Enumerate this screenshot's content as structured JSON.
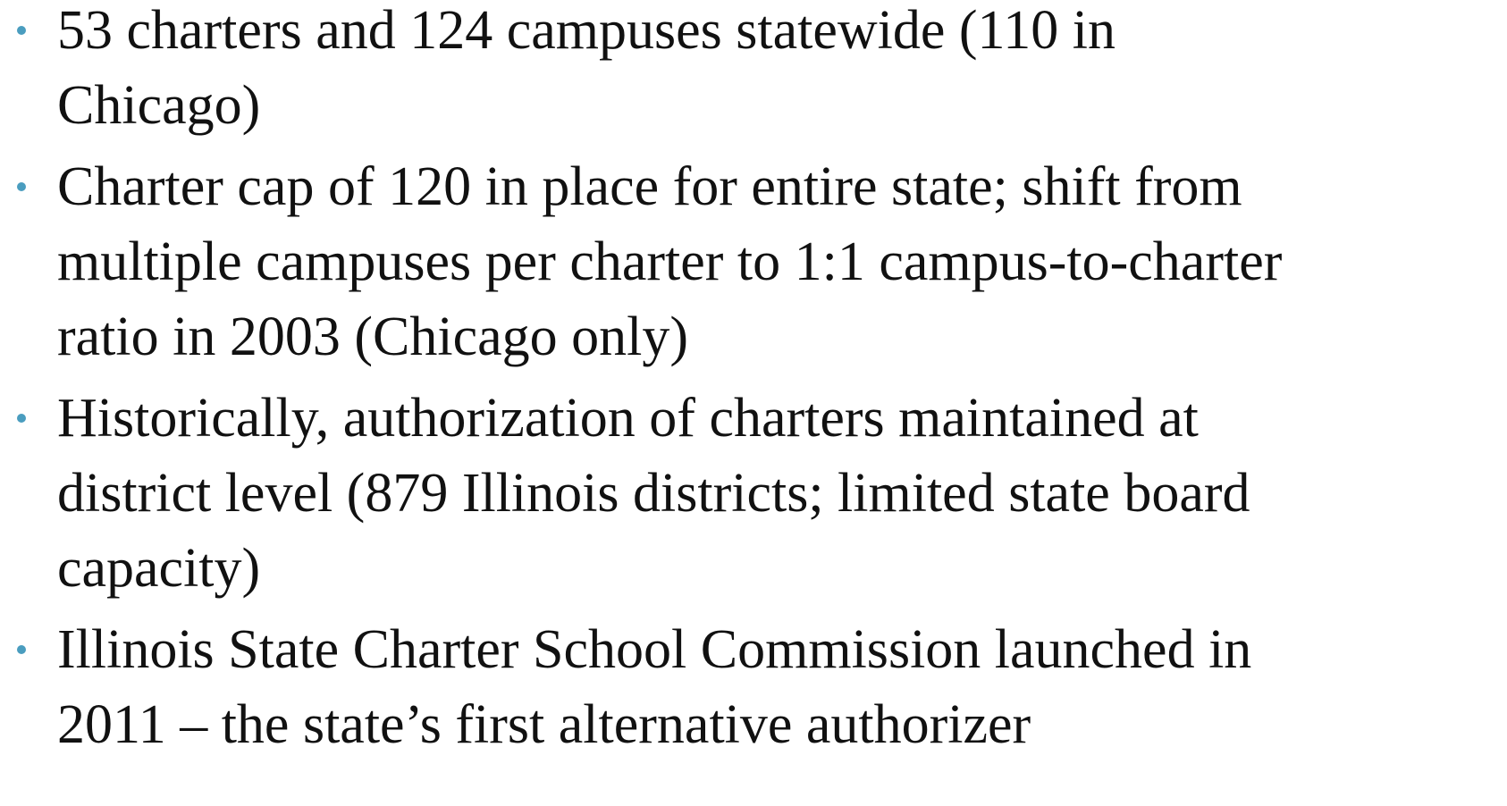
{
  "bullets": [
    {
      "lines": [
        "53 charters and 124 campuses statewide (110 in",
        "Chicago)"
      ]
    },
    {
      "lines": [
        "Charter cap of 120 in place for entire state; shift from",
        "multiple campuses per charter to 1:1 campus-to-charter",
        "ratio in 2003 (Chicago only)"
      ]
    },
    {
      "lines": [
        "Historically, authorization of charters maintained at",
        "district level (879 Illinois districts; limited state board",
        "capacity)"
      ]
    },
    {
      "lines": [
        "Illinois State Charter School Commission launched in",
        "2011 – the state’s first alternative authorizer"
      ]
    }
  ]
}
